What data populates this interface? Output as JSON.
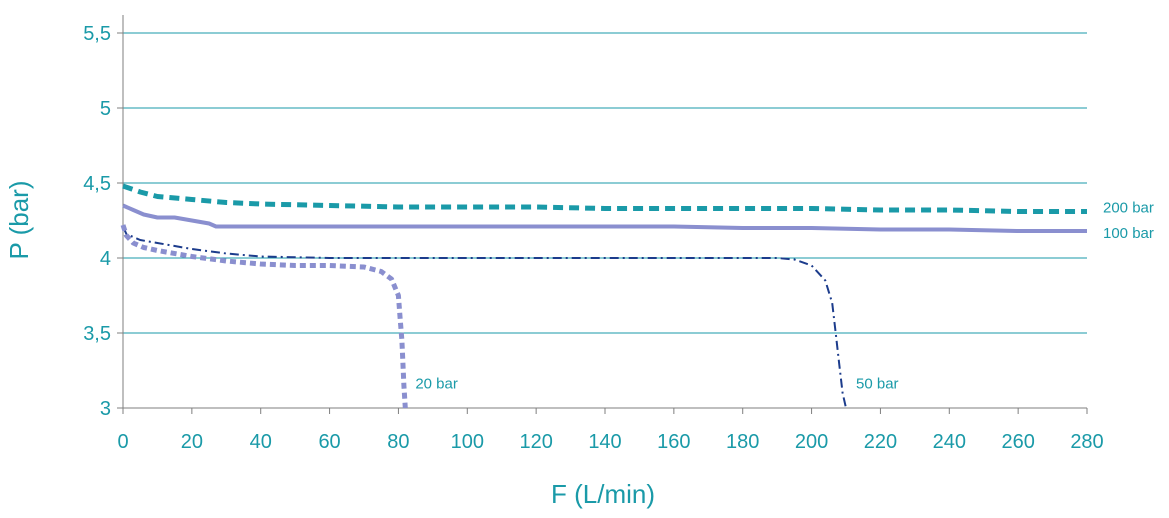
{
  "chart_data": {
    "type": "line",
    "xlabel": "F (L/min)",
    "ylabel": "P (bar)",
    "xlim": [
      0,
      280
    ],
    "ylim": [
      3,
      5.5
    ],
    "xticks": [
      0,
      20,
      40,
      60,
      80,
      100,
      120,
      140,
      160,
      180,
      200,
      220,
      240,
      260,
      280
    ],
    "yticks": [
      3,
      3.5,
      4,
      4.5,
      5,
      5.5
    ],
    "xtick_labels": [
      "0",
      "20",
      "40",
      "60",
      "80",
      "100",
      "120",
      "140",
      "160",
      "180",
      "200",
      "220",
      "240",
      "260",
      "280"
    ],
    "ytick_labels": [
      "3",
      "3,5",
      "4",
      "4,5",
      "5",
      "5,5"
    ],
    "grid": "horizontal",
    "series": [
      {
        "name": "200 bar",
        "color": "#1a9aa8",
        "style": "dashed-thick",
        "x": [
          0,
          5,
          10,
          20,
          30,
          40,
          60,
          80,
          100,
          120,
          140,
          160,
          180,
          200,
          220,
          240,
          260,
          280
        ],
        "y": [
          4.48,
          4.44,
          4.41,
          4.39,
          4.37,
          4.36,
          4.35,
          4.34,
          4.34,
          4.34,
          4.33,
          4.33,
          4.33,
          4.33,
          4.32,
          4.32,
          4.31,
          4.31
        ]
      },
      {
        "name": "100 bar",
        "color": "#8a8fcf",
        "style": "solid",
        "x": [
          0,
          3,
          6,
          10,
          15,
          20,
          25,
          27,
          35,
          40,
          60,
          80,
          100,
          120,
          140,
          160,
          180,
          200,
          220,
          240,
          260,
          280
        ],
        "y": [
          4.35,
          4.32,
          4.29,
          4.27,
          4.27,
          4.25,
          4.23,
          4.21,
          4.21,
          4.21,
          4.21,
          4.21,
          4.21,
          4.21,
          4.21,
          4.21,
          4.2,
          4.2,
          4.19,
          4.19,
          4.18,
          4.18
        ]
      },
      {
        "name": "50 bar",
        "color": "#1c3c8c",
        "style": "dash-dot",
        "x": [
          0,
          1,
          5,
          10,
          20,
          30,
          40,
          60,
          100,
          150,
          180,
          190,
          195,
          200,
          204,
          206,
          207,
          208,
          209,
          210
        ],
        "y": [
          4.21,
          4.16,
          4.12,
          4.1,
          4.06,
          4.03,
          4.01,
          4.0,
          4.0,
          4.0,
          4.0,
          4.0,
          3.99,
          3.95,
          3.85,
          3.7,
          3.5,
          3.3,
          3.1,
          3.0
        ]
      },
      {
        "name": "20 bar",
        "color": "#8a8fcf",
        "style": "dotted-thick",
        "x": [
          0,
          1,
          3,
          6,
          10,
          20,
          30,
          40,
          50,
          60,
          70,
          75,
          78,
          80,
          80.5,
          81,
          81.3,
          81.6,
          82
        ],
        "y": [
          4.22,
          4.15,
          4.1,
          4.07,
          4.05,
          4.01,
          3.98,
          3.96,
          3.95,
          3.95,
          3.94,
          3.91,
          3.86,
          3.75,
          3.6,
          3.45,
          3.3,
          3.15,
          3.0
        ]
      }
    ]
  }
}
